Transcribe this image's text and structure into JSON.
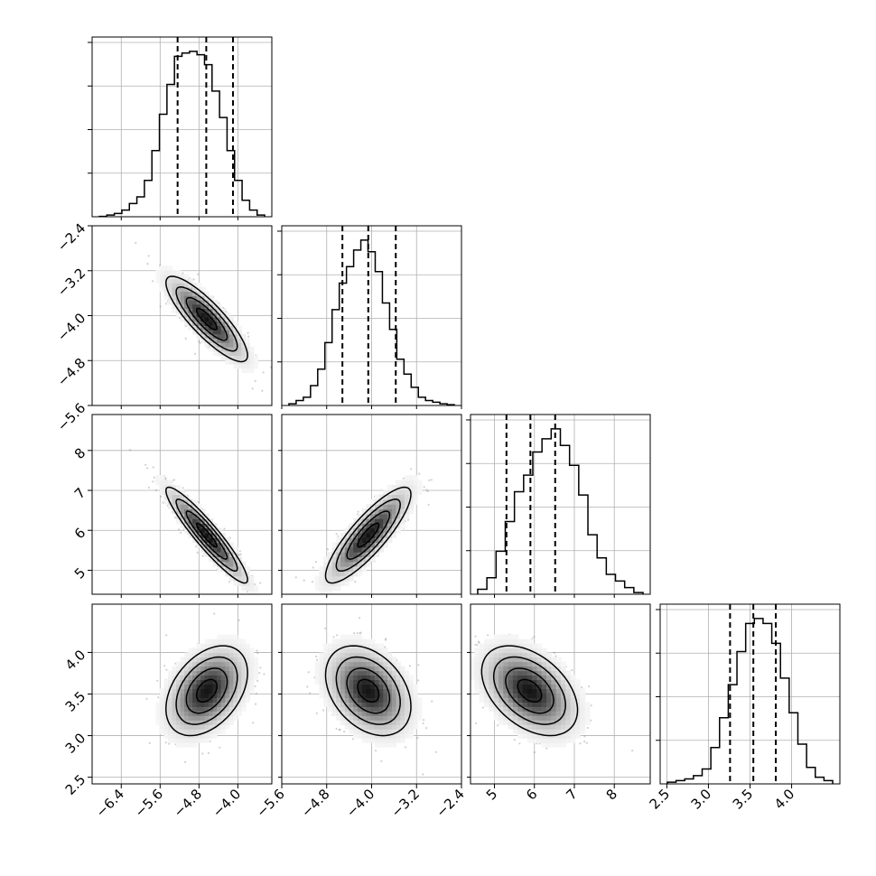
{
  "chart_data": {
    "type": "corner",
    "grid": true,
    "colors": {
      "line": "#000000",
      "grid": "#b0b0b0",
      "quantile": "#000000",
      "scatter": "#7a7a7a"
    },
    "variables": [
      {
        "range": [
          -7.0,
          -3.3
        ],
        "ticks": [
          -6.4,
          -5.6,
          -4.8,
          -4.0
        ],
        "tick_labels": [
          "−6.4",
          "−5.6",
          "−4.8",
          "−4.0"
        ],
        "quantiles": [
          -5.24,
          -4.65,
          -4.1
        ],
        "hist_counts": [
          0.2,
          1,
          2,
          4,
          8,
          12,
          22,
          40,
          62,
          80,
          97,
          99,
          100,
          98,
          92,
          76,
          60,
          40,
          22,
          10,
          4,
          1
        ]
      },
      {
        "range": [
          -5.6,
          -2.4
        ],
        "ticks": [
          -5.6,
          -4.8,
          -4.0,
          -3.2,
          -2.4
        ],
        "tick_labels": [
          "−5.6",
          "−4.8",
          "−4.0",
          "−3.2",
          "−2.4"
        ],
        "quantiles": [
          -4.52,
          -4.06,
          -3.57
        ],
        "hist_counts": [
          1,
          3,
          5,
          12,
          22,
          38,
          58,
          74,
          84,
          94,
          100,
          93,
          81,
          62,
          46,
          28,
          19,
          11,
          5,
          3,
          2,
          1,
          0.5
        ]
      },
      {
        "range": [
          4.4,
          8.9
        ],
        "ticks": [
          5,
          6,
          7,
          8
        ],
        "tick_labels": [
          "5",
          "6",
          "7",
          "8"
        ],
        "quantiles": [
          5.3,
          5.9,
          6.52
        ],
        "hist_counts": [
          3,
          10,
          26,
          44,
          62,
          72,
          86,
          94,
          100,
          90,
          78,
          60,
          36,
          22,
          12,
          8,
          4,
          1
        ]
      },
      {
        "range": [
          2.42,
          4.58
        ],
        "ticks": [
          2.5,
          3.0,
          3.5,
          4.0
        ],
        "tick_labels": [
          "2.5",
          "3.0",
          "3.5",
          "4.0"
        ],
        "quantiles": [
          3.26,
          3.54,
          3.81
        ],
        "hist_counts": [
          1,
          2,
          3,
          5,
          9,
          22,
          40,
          60,
          80,
          97,
          100,
          97,
          85,
          64,
          43,
          24,
          10,
          4,
          2
        ]
      }
    ],
    "pairs": [
      {
        "x": 0,
        "y": 1,
        "mean": [
          -4.64,
          -4.06
        ],
        "sigma": [
          0.42,
          0.38
        ],
        "rho": -0.85
      },
      {
        "x": 0,
        "y": 2,
        "mean": [
          -4.64,
          5.88
        ],
        "sigma": [
          0.42,
          0.6
        ],
        "rho": -0.93
      },
      {
        "x": 1,
        "y": 2,
        "mean": [
          -4.06,
          5.88
        ],
        "sigma": [
          0.38,
          0.6
        ],
        "rho": 0.85
      },
      {
        "x": 0,
        "y": 3,
        "mean": [
          -4.64,
          3.54
        ],
        "sigma": [
          0.42,
          0.27
        ],
        "rho": 0.4
      },
      {
        "x": 1,
        "y": 3,
        "mean": [
          -4.06,
          3.54
        ],
        "sigma": [
          0.38,
          0.27
        ],
        "rho": -0.35
      },
      {
        "x": 2,
        "y": 3,
        "mean": [
          5.88,
          3.54
        ],
        "sigma": [
          0.6,
          0.27
        ],
        "rho": -0.43
      }
    ]
  }
}
